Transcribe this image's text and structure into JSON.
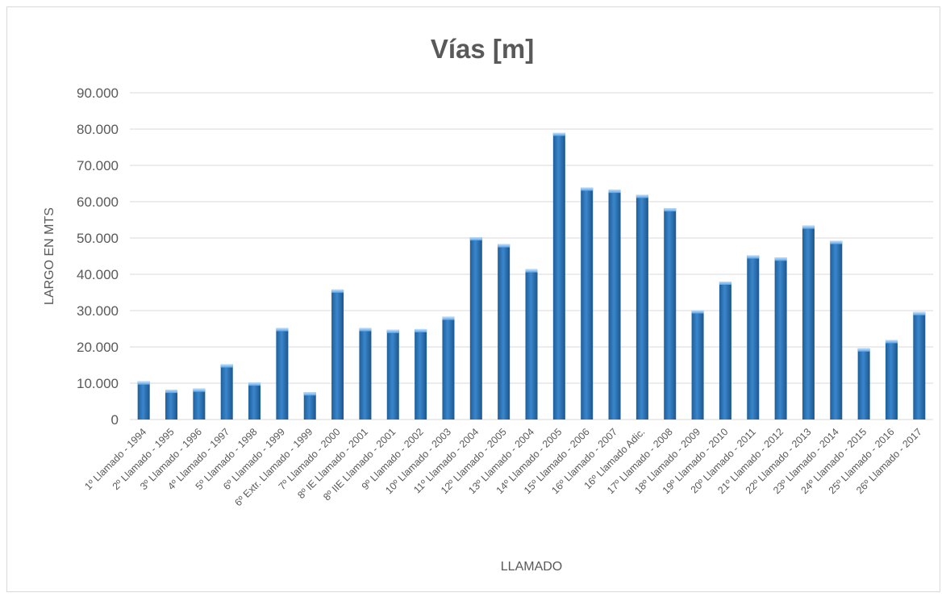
{
  "chart_data": {
    "type": "bar",
    "title": "Vías [m]",
    "xlabel": "LLAMADO",
    "ylabel": "LARGO EN MTS",
    "ylim": [
      0,
      90000
    ],
    "yticks": [
      0,
      10000,
      20000,
      30000,
      40000,
      50000,
      60000,
      70000,
      80000,
      90000
    ],
    "ytick_labels": [
      "0",
      "10.000",
      "20.000",
      "30.000",
      "40.000",
      "50.000",
      "60.000",
      "70.000",
      "80.000",
      "90.000"
    ],
    "grid": true,
    "legend": "none",
    "bar_color": "#2e75b6",
    "categories": [
      "1º Llamado - 1994",
      "2º Llamado - 1995",
      "3º Llamado - 1996",
      "4º Llamado - 1997",
      "5º Llamado - 1998",
      "6º Llamado - 1999",
      "6º Extr. Llamado - 1999",
      "7º Llamado - 2000",
      "8º IE Llamado - 2001",
      "8º IIE Llamado - 2001",
      "9º Llamado - 2002",
      "10º Llamado - 2003",
      "11º Llamado - 2004",
      "12º Llamado - 2005",
      "13º Llamado - 2004",
      "14º Llamado - 2005",
      "15º Llamado - 2006",
      "16º Llamado - 2007",
      "16º Llamado Adic.",
      "17º Llamado - 2008",
      "18º Llamado - 2009",
      "19º Llamado - 2010",
      "20º Llamado - 2011",
      "21º Llamado - 2012",
      "22º Llamado - 2013",
      "23º Llamado - 2014",
      "24º Llamado - 2015",
      "25º Llamado - 2016",
      "26º Llamado - 2017"
    ],
    "values": [
      10500,
      8200,
      8500,
      15200,
      10200,
      25200,
      7500,
      35800,
      25200,
      24700,
      24900,
      28300,
      50200,
      48300,
      41400,
      79000,
      63900,
      63300,
      61900,
      58200,
      30100,
      38000,
      45200,
      44600,
      53400,
      49200,
      19600,
      21900,
      29600
    ]
  }
}
